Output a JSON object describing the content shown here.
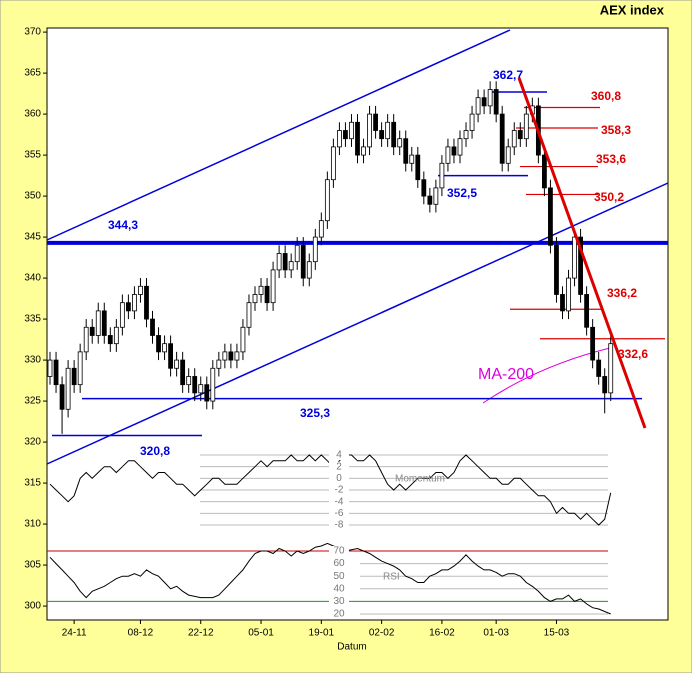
{
  "chart_data": {
    "type": "candlestick",
    "title": "AEX index",
    "x_label": "Datum",
    "categories": [
      null,
      null,
      null,
      null,
      "24-11",
      null,
      null,
      null,
      null,
      null,
      null,
      null,
      null,
      null,
      null,
      "08-12",
      null,
      null,
      null,
      null,
      null,
      null,
      null,
      null,
      null,
      "22-12",
      null,
      null,
      null,
      null,
      null,
      null,
      null,
      null,
      null,
      "05-01",
      null,
      null,
      null,
      null,
      null,
      null,
      null,
      null,
      null,
      "19-01",
      null,
      null,
      null,
      null,
      null,
      null,
      null,
      null,
      null,
      "02-02",
      null,
      null,
      null,
      null,
      null,
      null,
      null,
      null,
      null,
      "16-02",
      null,
      null,
      null,
      null,
      null,
      null,
      null,
      null,
      "01-03",
      null,
      null,
      null,
      null,
      null,
      null,
      null,
      null,
      null,
      "15-03",
      null,
      null,
      null,
      null,
      null,
      null,
      null,
      null,
      null,
      null,
      null,
      null,
      null,
      null,
      null,
      null,
      null,
      null
    ],
    "open": [
      328,
      330,
      327,
      324,
      329,
      327,
      331,
      334,
      333,
      336,
      333,
      332,
      334,
      337,
      336,
      338,
      339,
      335,
      333,
      331,
      332,
      329,
      330,
      327,
      328,
      326,
      327,
      325,
      329,
      330,
      331,
      330,
      331,
      334,
      337,
      338,
      339,
      337,
      341,
      343,
      341,
      342,
      344,
      340,
      342,
      345,
      347,
      352,
      356,
      358,
      357,
      359,
      355,
      356,
      360,
      358,
      357,
      359,
      356,
      357,
      354,
      355,
      352,
      350,
      349,
      351,
      354,
      356,
      355,
      357,
      358,
      360,
      362,
      361,
      363,
      360,
      354,
      356,
      358,
      357,
      360,
      361,
      355,
      351,
      344,
      338,
      336,
      340,
      345,
      338,
      334,
      330,
      328,
      326,
      null,
      null,
      null,
      null,
      null,
      null,
      null,
      null,
      null
    ],
    "high": [
      331,
      331,
      328,
      330,
      330,
      332,
      335,
      335,
      337,
      337,
      334,
      335,
      338,
      338,
      339,
      340,
      340,
      336,
      334,
      333,
      333,
      331,
      331,
      329,
      329,
      328,
      328,
      330,
      331,
      332,
      332,
      332,
      335,
      338,
      339,
      340,
      340,
      342,
      344,
      344,
      343,
      345,
      345,
      343,
      346,
      348,
      353,
      357,
      359,
      359,
      360,
      360,
      357,
      361,
      361,
      359,
      360,
      360,
      358,
      358,
      356,
      356,
      353,
      351,
      352,
      355,
      357,
      357,
      358,
      359,
      361,
      363,
      363,
      364,
      364,
      361,
      357,
      359,
      359,
      361,
      362,
      362,
      356,
      352,
      345,
      339,
      341,
      346,
      346,
      339,
      335,
      331,
      329,
      333,
      null,
      null,
      null,
      null,
      null,
      null,
      null,
      null,
      null
    ],
    "low": [
      327,
      326,
      321,
      323,
      326,
      326,
      330,
      332,
      332,
      332,
      331,
      331,
      333,
      335,
      335,
      337,
      334,
      332,
      330,
      330,
      328,
      328,
      326,
      326,
      325,
      325,
      324,
      324,
      328,
      329,
      329,
      329,
      330,
      333,
      336,
      337,
      336,
      336,
      340,
      340,
      340,
      341,
      339,
      339,
      341,
      344,
      346,
      351,
      355,
      356,
      356,
      354,
      354,
      355,
      357,
      356,
      356,
      355,
      355,
      353,
      353,
      351,
      349,
      348,
      348,
      350,
      353,
      354,
      354,
      356,
      357,
      359,
      360,
      360,
      359,
      353,
      353,
      355,
      356,
      356,
      359,
      354,
      350,
      343,
      337,
      335,
      335,
      339,
      337,
      333,
      329,
      327,
      323.5,
      325,
      null,
      null,
      null,
      null,
      null,
      null,
      null,
      null,
      null
    ],
    "close": [
      330,
      327,
      324,
      329,
      327,
      331,
      334,
      333,
      336,
      333,
      332,
      334,
      337,
      336,
      338,
      339,
      335,
      333,
      331,
      332,
      329,
      330,
      327,
      328,
      326,
      327,
      325,
      329,
      330,
      331,
      330,
      331,
      334,
      337,
      338,
      339,
      337,
      341,
      343,
      341,
      342,
      344,
      340,
      342,
      345,
      347,
      352,
      356,
      358,
      357,
      359,
      355,
      356,
      360,
      358,
      357,
      359,
      356,
      357,
      354,
      355,
      352,
      350,
      349,
      351,
      354,
      356,
      355,
      357,
      358,
      360,
      362,
      361,
      363,
      360,
      354,
      356,
      358,
      357,
      360,
      361,
      355,
      351,
      344,
      338,
      336,
      340,
      345,
      338,
      334,
      330,
      328,
      326,
      332,
      null,
      null,
      null,
      null,
      null,
      null,
      null,
      null,
      null
    ],
    "ylim": [
      298.3,
      370.5
    ],
    "yticks": [
      300,
      305,
      310,
      315,
      320,
      325,
      330,
      335,
      340,
      345,
      350,
      355,
      360,
      365,
      370
    ],
    "levels": [
      {
        "label": "344,3",
        "value": 344.3,
        "color": "#0000dd"
      },
      {
        "label": "325,3",
        "value": 325.3,
        "color": "#0000dd"
      },
      {
        "label": "320,8",
        "value": 320.8,
        "color": "#0000dd"
      },
      {
        "label": "362,7",
        "value": 362.7,
        "color": "#0000dd"
      },
      {
        "label": "352,5",
        "value": 352.5,
        "color": "#0000dd"
      },
      {
        "label": "360,8",
        "value": 360.8,
        "color": "#dd0000"
      },
      {
        "label": "358,3",
        "value": 358.3,
        "color": "#dd0000"
      },
      {
        "label": "353,6",
        "value": 353.6,
        "color": "#dd0000"
      },
      {
        "label": "350,2",
        "value": 350.2,
        "color": "#dd0000"
      },
      {
        "label": "336,2",
        "value": 336.2,
        "color": "#dd0000"
      },
      {
        "label": "332,6",
        "value": 332.6,
        "color": "#dd0000"
      }
    ],
    "ma_label": "MA-200",
    "momentum": {
      "name": "Momentum",
      "lim": [
        -8,
        4
      ],
      "ticks": [
        4,
        2,
        0,
        -2,
        -4,
        -6,
        -8
      ],
      "values": [
        -1,
        -2,
        -3,
        -4,
        -3,
        0,
        1,
        0,
        1,
        2,
        2,
        1,
        2,
        3,
        3,
        2,
        1,
        0,
        1,
        1,
        0,
        -1,
        -1,
        -2,
        -3,
        -2,
        -1,
        0,
        0,
        -1,
        -1,
        -1,
        0,
        1,
        2,
        3,
        2,
        3,
        3,
        3,
        4,
        3,
        3,
        4,
        3,
        4,
        3,
        2,
        3,
        4,
        4,
        3,
        3,
        4,
        3,
        1,
        -1,
        -2,
        -1,
        -2,
        -1,
        0,
        0,
        0,
        1,
        1,
        0,
        1,
        3,
        4,
        3,
        2,
        1,
        0,
        0,
        -1,
        -1,
        0,
        0,
        -1,
        -2,
        -3,
        -3,
        -4,
        -6,
        -5,
        -6,
        -6,
        -7,
        -6,
        -7,
        -8,
        -7,
        -2.5,
        null,
        null,
        null,
        null,
        null,
        null,
        null,
        null,
        null
      ]
    },
    "rsi": {
      "name": "RSI",
      "lim": [
        20,
        70
      ],
      "ticks": [
        70,
        60,
        50,
        40,
        30,
        20
      ],
      "values": [
        65,
        60,
        55,
        50,
        45,
        38,
        33,
        38,
        40,
        42,
        45,
        48,
        50,
        50,
        52,
        50,
        55,
        52,
        50,
        45,
        40,
        42,
        38,
        35,
        34,
        33,
        33,
        33,
        35,
        40,
        45,
        50,
        55,
        62,
        68,
        70,
        70,
        68,
        72,
        70,
        66,
        70,
        68,
        70,
        73,
        74,
        76,
        74,
        72,
        70,
        71,
        72,
        70,
        68,
        65,
        62,
        60,
        58,
        55,
        50,
        48,
        45,
        45,
        50,
        52,
        55,
        55,
        58,
        62,
        67,
        62,
        58,
        55,
        55,
        53,
        50,
        52,
        52,
        50,
        45,
        42,
        38,
        33,
        30,
        32,
        32,
        35,
        30,
        32,
        28,
        25,
        24,
        22,
        20,
        null,
        null,
        null,
        null,
        null,
        null,
        null,
        null,
        null
      ]
    }
  }
}
